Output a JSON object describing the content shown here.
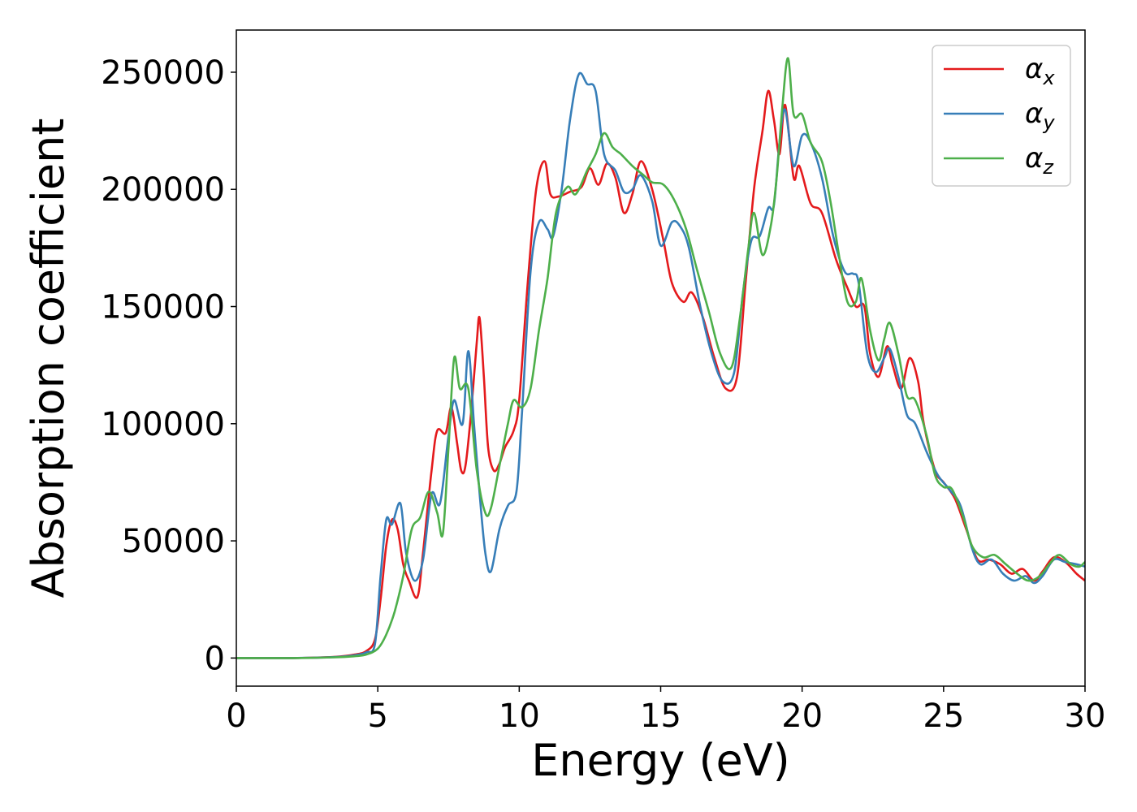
{
  "chart_data": {
    "type": "line",
    "xlabel": "Energy (eV)",
    "ylabel": "Absorption coefficient",
    "xlim": [
      0,
      30
    ],
    "ylim": [
      -12000,
      268000
    ],
    "xticks": [
      0,
      5,
      10,
      15,
      20,
      25,
      30
    ],
    "yticks": [
      0,
      50000,
      100000,
      150000,
      200000,
      250000
    ],
    "grid": false,
    "legend_position": "top-right",
    "series": [
      {
        "name": "α_x",
        "label_main": "α",
        "label_sub": "x",
        "color": "#e41a1c",
        "points": [
          [
            0,
            0
          ],
          [
            2,
            0
          ],
          [
            3.5,
            500
          ],
          [
            4.2,
            1500
          ],
          [
            4.6,
            3000
          ],
          [
            4.9,
            8000
          ],
          [
            5.1,
            25000
          ],
          [
            5.3,
            48000
          ],
          [
            5.5,
            59000
          ],
          [
            5.7,
            55000
          ],
          [
            5.9,
            40000
          ],
          [
            6.1,
            33000
          ],
          [
            6.4,
            26000
          ],
          [
            6.6,
            45000
          ],
          [
            6.9,
            80000
          ],
          [
            7.1,
            97000
          ],
          [
            7.4,
            96000
          ],
          [
            7.6,
            107000
          ],
          [
            7.8,
            92000
          ],
          [
            7.95,
            80000
          ],
          [
            8.1,
            82000
          ],
          [
            8.3,
            105000
          ],
          [
            8.5,
            135000
          ],
          [
            8.6,
            145000
          ],
          [
            8.75,
            120000
          ],
          [
            8.9,
            90000
          ],
          [
            9.1,
            80000
          ],
          [
            9.3,
            83000
          ],
          [
            9.5,
            90000
          ],
          [
            9.8,
            97000
          ],
          [
            10.0,
            110000
          ],
          [
            10.3,
            160000
          ],
          [
            10.6,
            200000
          ],
          [
            10.9,
            212000
          ],
          [
            11.1,
            198000
          ],
          [
            11.4,
            197000
          ],
          [
            11.8,
            199000
          ],
          [
            12.2,
            201000
          ],
          [
            12.5,
            209000
          ],
          [
            12.8,
            202000
          ],
          [
            13.1,
            211000
          ],
          [
            13.4,
            205000
          ],
          [
            13.7,
            190000
          ],
          [
            14.0,
            198000
          ],
          [
            14.3,
            212000
          ],
          [
            14.7,
            200000
          ],
          [
            15.1,
            178000
          ],
          [
            15.4,
            160000
          ],
          [
            15.8,
            152000
          ],
          [
            16.1,
            156000
          ],
          [
            16.5,
            145000
          ],
          [
            16.9,
            128000
          ],
          [
            17.3,
            115000
          ],
          [
            17.7,
            120000
          ],
          [
            18.0,
            160000
          ],
          [
            18.3,
            200000
          ],
          [
            18.6,
            225000
          ],
          [
            18.8,
            242000
          ],
          [
            19.0,
            230000
          ],
          [
            19.2,
            215000
          ],
          [
            19.4,
            236000
          ],
          [
            19.7,
            205000
          ],
          [
            19.9,
            210000
          ],
          [
            20.3,
            194000
          ],
          [
            20.7,
            190000
          ],
          [
            21.2,
            170000
          ],
          [
            21.6,
            158000
          ],
          [
            21.9,
            150000
          ],
          [
            22.2,
            150000
          ],
          [
            22.4,
            130000
          ],
          [
            22.7,
            120000
          ],
          [
            23.0,
            133000
          ],
          [
            23.2,
            125000
          ],
          [
            23.5,
            115000
          ],
          [
            23.8,
            128000
          ],
          [
            24.1,
            118000
          ],
          [
            24.3,
            100000
          ],
          [
            24.7,
            80000
          ],
          [
            25.0,
            75000
          ],
          [
            25.4,
            68000
          ],
          [
            25.8,
            55000
          ],
          [
            26.2,
            42000
          ],
          [
            26.6,
            42000
          ],
          [
            27.0,
            40000
          ],
          [
            27.4,
            36000
          ],
          [
            27.8,
            38000
          ],
          [
            28.2,
            33000
          ],
          [
            28.5,
            37000
          ],
          [
            28.9,
            43000
          ],
          [
            29.3,
            41000
          ],
          [
            29.7,
            36000
          ],
          [
            30.0,
            33000
          ]
        ]
      },
      {
        "name": "α_y",
        "label_main": "α",
        "label_sub": "y",
        "color": "#377eb8",
        "points": [
          [
            0,
            0
          ],
          [
            2,
            0
          ],
          [
            3.5,
            400
          ],
          [
            4.2,
            1200
          ],
          [
            4.6,
            2500
          ],
          [
            4.9,
            6000
          ],
          [
            5.1,
            35000
          ],
          [
            5.3,
            59000
          ],
          [
            5.5,
            57000
          ],
          [
            5.8,
            66000
          ],
          [
            6.0,
            45000
          ],
          [
            6.3,
            33000
          ],
          [
            6.6,
            42000
          ],
          [
            6.9,
            70000
          ],
          [
            7.2,
            66000
          ],
          [
            7.5,
            95000
          ],
          [
            7.7,
            110000
          ],
          [
            8.0,
            100000
          ],
          [
            8.2,
            131000
          ],
          [
            8.4,
            100000
          ],
          [
            8.6,
            70000
          ],
          [
            8.8,
            45000
          ],
          [
            9.0,
            37000
          ],
          [
            9.3,
            55000
          ],
          [
            9.6,
            65000
          ],
          [
            9.9,
            71000
          ],
          [
            10.1,
            105000
          ],
          [
            10.4,
            165000
          ],
          [
            10.7,
            186000
          ],
          [
            11.0,
            183000
          ],
          [
            11.2,
            180000
          ],
          [
            11.5,
            200000
          ],
          [
            11.8,
            230000
          ],
          [
            12.1,
            249000
          ],
          [
            12.4,
            245000
          ],
          [
            12.7,
            242000
          ],
          [
            13.0,
            215000
          ],
          [
            13.4,
            208000
          ],
          [
            13.7,
            199000
          ],
          [
            14.0,
            200000
          ],
          [
            14.3,
            206000
          ],
          [
            14.7,
            195000
          ],
          [
            15.0,
            176000
          ],
          [
            15.4,
            186000
          ],
          [
            15.7,
            184000
          ],
          [
            16.0,
            175000
          ],
          [
            16.4,
            150000
          ],
          [
            16.8,
            130000
          ],
          [
            17.2,
            118000
          ],
          [
            17.6,
            122000
          ],
          [
            17.9,
            155000
          ],
          [
            18.2,
            178000
          ],
          [
            18.5,
            180000
          ],
          [
            18.8,
            192000
          ],
          [
            19.0,
            193000
          ],
          [
            19.2,
            220000
          ],
          [
            19.4,
            234000
          ],
          [
            19.7,
            210000
          ],
          [
            20.0,
            223000
          ],
          [
            20.3,
            220000
          ],
          [
            20.7,
            205000
          ],
          [
            21.1,
            180000
          ],
          [
            21.5,
            165000
          ],
          [
            21.8,
            164000
          ],
          [
            22.0,
            160000
          ],
          [
            22.3,
            130000
          ],
          [
            22.6,
            122000
          ],
          [
            22.9,
            128000
          ],
          [
            23.1,
            132000
          ],
          [
            23.4,
            120000
          ],
          [
            23.7,
            104000
          ],
          [
            24.0,
            100000
          ],
          [
            24.4,
            88000
          ],
          [
            24.8,
            78000
          ],
          [
            25.2,
            72000
          ],
          [
            25.6,
            65000
          ],
          [
            26.0,
            47000
          ],
          [
            26.3,
            40000
          ],
          [
            26.7,
            42000
          ],
          [
            27.1,
            36000
          ],
          [
            27.5,
            33000
          ],
          [
            27.9,
            35000
          ],
          [
            28.2,
            32000
          ],
          [
            28.5,
            35000
          ],
          [
            28.9,
            42000
          ],
          [
            29.3,
            41000
          ],
          [
            29.7,
            40000
          ],
          [
            30.0,
            39000
          ]
        ]
      },
      {
        "name": "α_z",
        "label_main": "α",
        "label_sub": "z",
        "color": "#4daf4a",
        "points": [
          [
            0,
            0
          ],
          [
            2,
            0
          ],
          [
            3.5,
            300
          ],
          [
            4.2,
            800
          ],
          [
            4.6,
            1500
          ],
          [
            5.0,
            4000
          ],
          [
            5.3,
            10000
          ],
          [
            5.6,
            20000
          ],
          [
            5.9,
            35000
          ],
          [
            6.2,
            55000
          ],
          [
            6.5,
            60000
          ],
          [
            6.8,
            71000
          ],
          [
            7.1,
            62000
          ],
          [
            7.3,
            53000
          ],
          [
            7.5,
            90000
          ],
          [
            7.7,
            128000
          ],
          [
            7.9,
            115000
          ],
          [
            8.2,
            115000
          ],
          [
            8.5,
            80000
          ],
          [
            8.8,
            62000
          ],
          [
            9.0,
            64000
          ],
          [
            9.3,
            82000
          ],
          [
            9.6,
            100000
          ],
          [
            9.8,
            110000
          ],
          [
            10.1,
            107000
          ],
          [
            10.4,
            115000
          ],
          [
            10.7,
            140000
          ],
          [
            11.0,
            162000
          ],
          [
            11.3,
            190000
          ],
          [
            11.7,
            201000
          ],
          [
            12.0,
            198000
          ],
          [
            12.4,
            208000
          ],
          [
            12.7,
            215000
          ],
          [
            13.0,
            224000
          ],
          [
            13.3,
            218000
          ],
          [
            13.6,
            215000
          ],
          [
            14.0,
            210000
          ],
          [
            14.4,
            206000
          ],
          [
            14.7,
            203000
          ],
          [
            15.1,
            202000
          ],
          [
            15.5,
            195000
          ],
          [
            15.9,
            183000
          ],
          [
            16.3,
            165000
          ],
          [
            16.7,
            148000
          ],
          [
            17.1,
            130000
          ],
          [
            17.5,
            124000
          ],
          [
            17.8,
            145000
          ],
          [
            18.1,
            175000
          ],
          [
            18.3,
            190000
          ],
          [
            18.6,
            172000
          ],
          [
            18.9,
            185000
          ],
          [
            19.1,
            205000
          ],
          [
            19.3,
            235000
          ],
          [
            19.5,
            256000
          ],
          [
            19.7,
            232000
          ],
          [
            20.0,
            232000
          ],
          [
            20.3,
            220000
          ],
          [
            20.7,
            212000
          ],
          [
            21.0,
            195000
          ],
          [
            21.3,
            172000
          ],
          [
            21.6,
            152000
          ],
          [
            21.9,
            152000
          ],
          [
            22.1,
            162000
          ],
          [
            22.4,
            140000
          ],
          [
            22.7,
            127000
          ],
          [
            22.9,
            136000
          ],
          [
            23.1,
            143000
          ],
          [
            23.4,
            130000
          ],
          [
            23.7,
            112000
          ],
          [
            24.0,
            110000
          ],
          [
            24.4,
            95000
          ],
          [
            24.7,
            78000
          ],
          [
            25.0,
            73000
          ],
          [
            25.3,
            72000
          ],
          [
            25.7,
            60000
          ],
          [
            26.0,
            48000
          ],
          [
            26.4,
            43000
          ],
          [
            26.8,
            44000
          ],
          [
            27.2,
            40000
          ],
          [
            27.6,
            36000
          ],
          [
            28.0,
            33000
          ],
          [
            28.4,
            35000
          ],
          [
            28.8,
            41000
          ],
          [
            29.1,
            44000
          ],
          [
            29.5,
            40000
          ],
          [
            29.8,
            39000
          ],
          [
            30.0,
            41000
          ]
        ]
      }
    ]
  }
}
